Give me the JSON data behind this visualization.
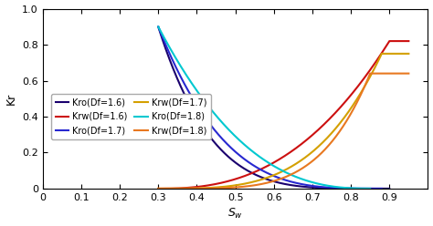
{
  "title": "",
  "xlabel": "$S_w$",
  "ylabel": "Kr",
  "xlim": [
    0,
    1.0
  ],
  "ylim": [
    0,
    1.0
  ],
  "Swi": 0.3,
  "Sor_values": [
    0.1,
    0.12,
    0.15
  ],
  "Df_values": [
    1.6,
    1.7,
    1.8
  ],
  "kro_colors": [
    "#1a006e",
    "#2828d0",
    "#00c8d0"
  ],
  "krw_colors": [
    "#cc1010",
    "#d4a000",
    "#e87820"
  ],
  "legend_kro_labels": [
    "Kro(Df=1.6)",
    "Kro(Df=1.7)",
    "Kro(Df=1.8)"
  ],
  "legend_krw_labels": [
    "Krw(Df=1.6)",
    "Krw(Df=1.7)",
    "Krw(Df=1.8)"
  ],
  "linewidth": 1.5,
  "xticks": [
    0,
    0.1,
    0.2,
    0.3,
    0.4,
    0.5,
    0.6,
    0.7,
    0.8,
    0.9
  ],
  "yticks": [
    0,
    0.2,
    0.4,
    0.6,
    0.8,
    1.0
  ],
  "tick_label_fontsize": 8,
  "axis_label_fontsize": 9,
  "legend_fontsize": 7,
  "Kro_max": 0.9,
  "Krw_max": [
    0.82,
    0.75,
    0.64
  ],
  "no_exponents": [
    4.5,
    3.5,
    2.5
  ],
  "nw_exponents": [
    2.5,
    3.5,
    4.5
  ]
}
